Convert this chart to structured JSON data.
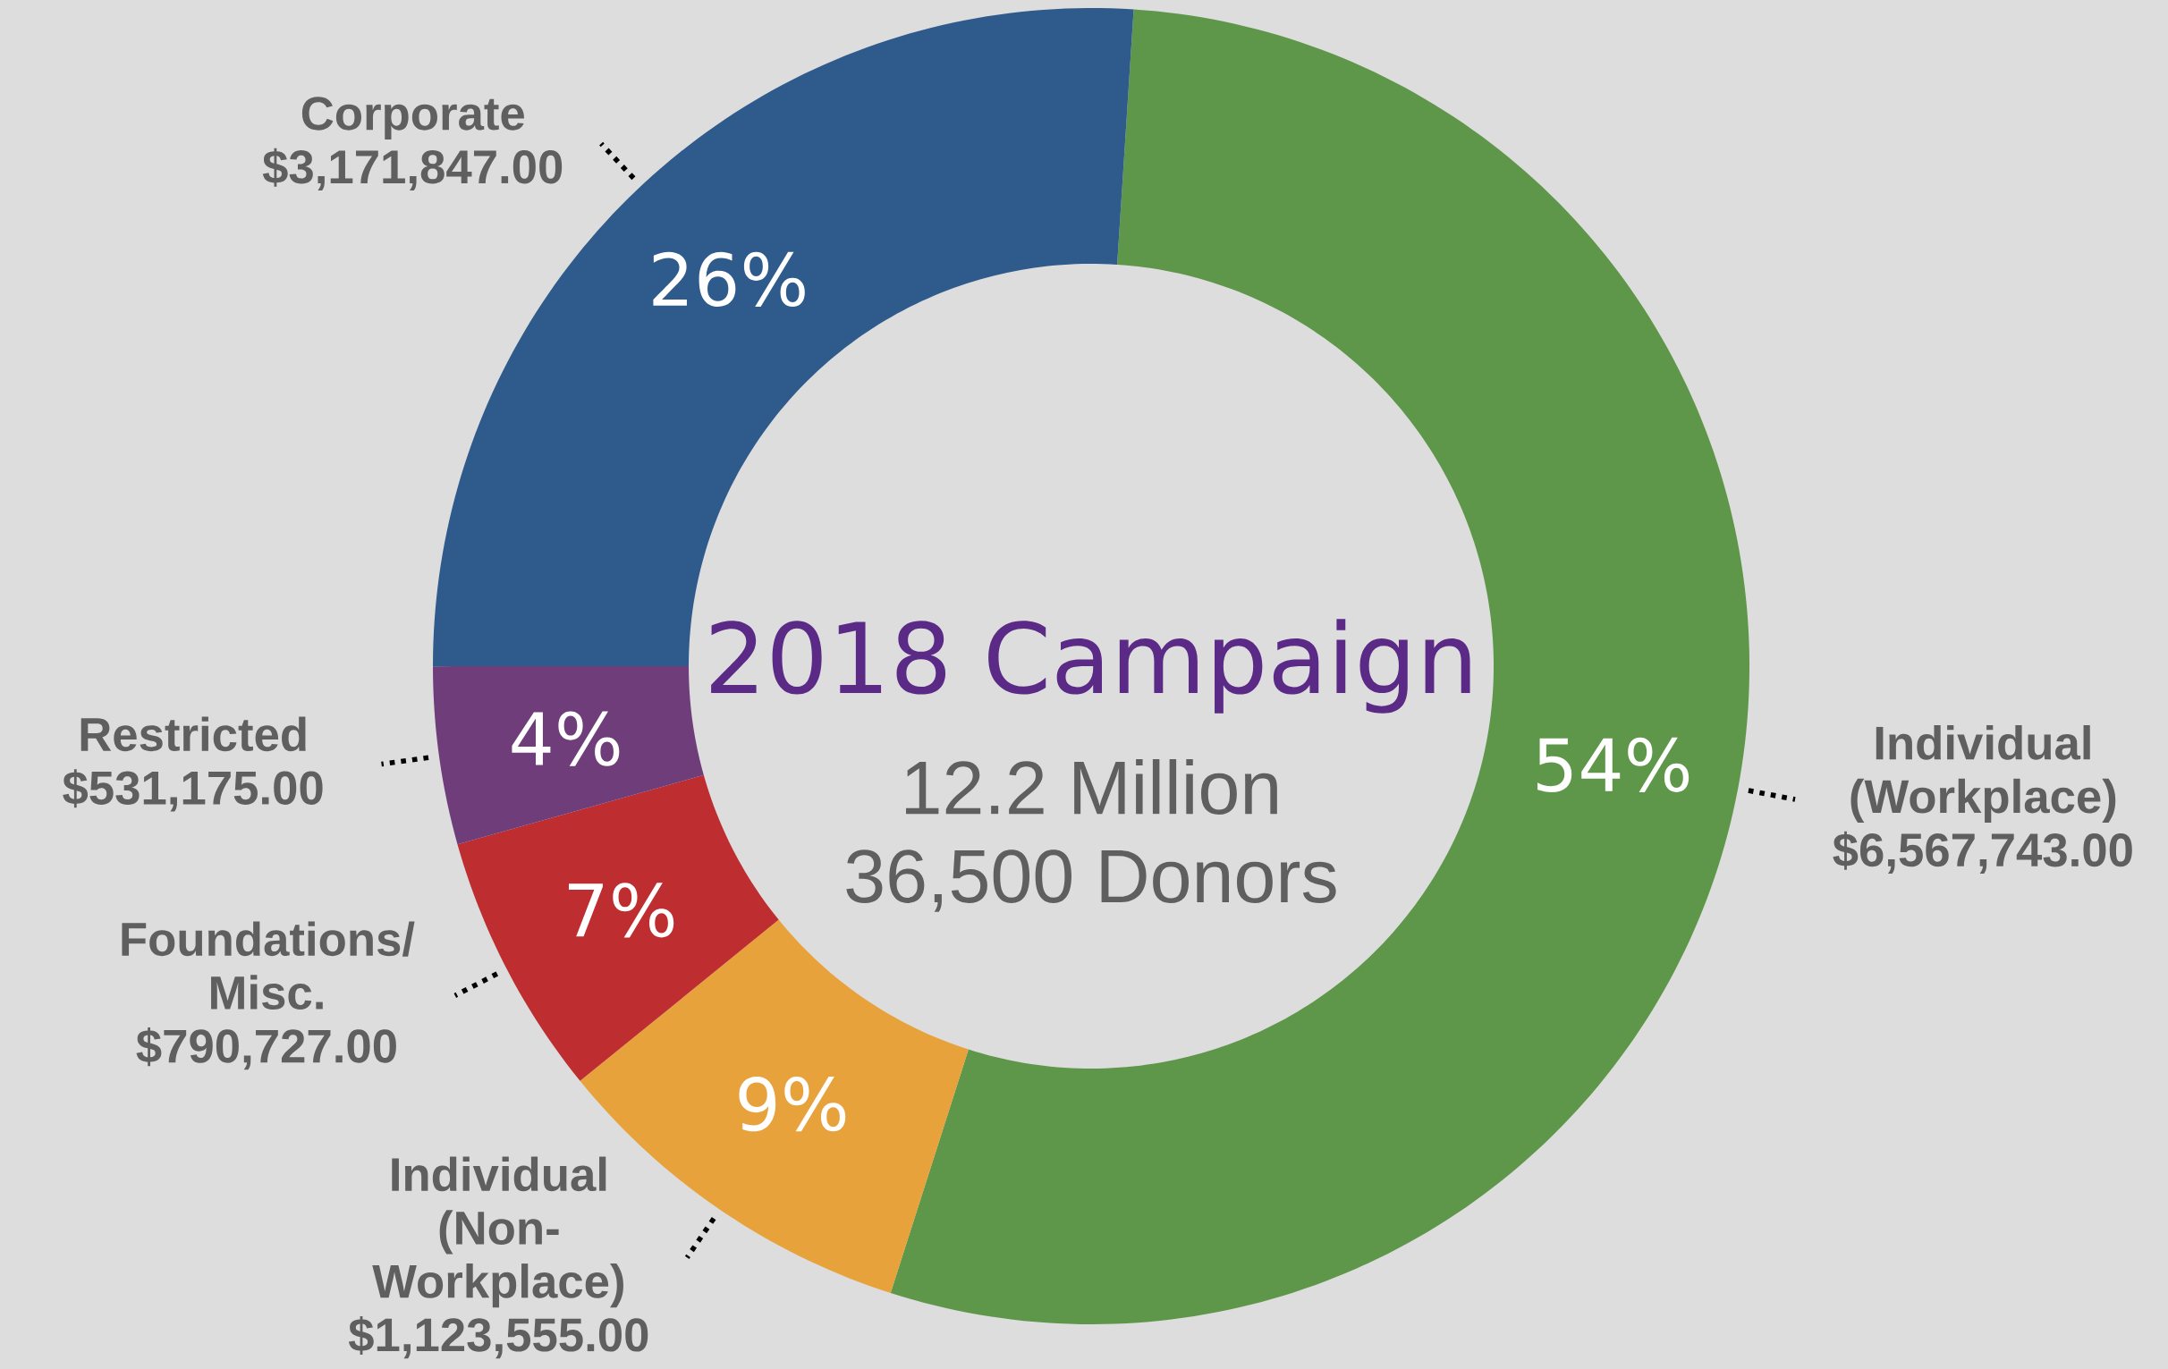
{
  "chart_data": {
    "type": "donut",
    "title": "2018 Campaign",
    "categories": [
      "Individual (Workplace)",
      "Individual (Non-Workplace)",
      "Foundations/ Misc.",
      "Restricted",
      "Corporate"
    ],
    "values": [
      6567743.0,
      1123555.0,
      790727.0,
      531175.0,
      3171847.0
    ],
    "value_labels": [
      "$6,567,743.00",
      "$1,123,555.00",
      "$790,727.00",
      "$531,175.00",
      "$3,171,847.00"
    ],
    "colors": [
      "#5e9749",
      "#e8a23b",
      "#be2d2f",
      "#6e3d7a",
      "#2e5a8c"
    ],
    "annotations": [
      {
        "text": "54%",
        "x": "Individual (Workplace)"
      },
      {
        "text": "9%",
        "x": "Individual (Non-Workplace)"
      },
      {
        "text": "7%",
        "x": "Foundations/ Misc."
      },
      {
        "text": "4%",
        "x": "Restricted"
      },
      {
        "text": "26%",
        "x": "Corporate"
      },
      "12.2 Million",
      "36,500 Donors"
    ]
  }
}
